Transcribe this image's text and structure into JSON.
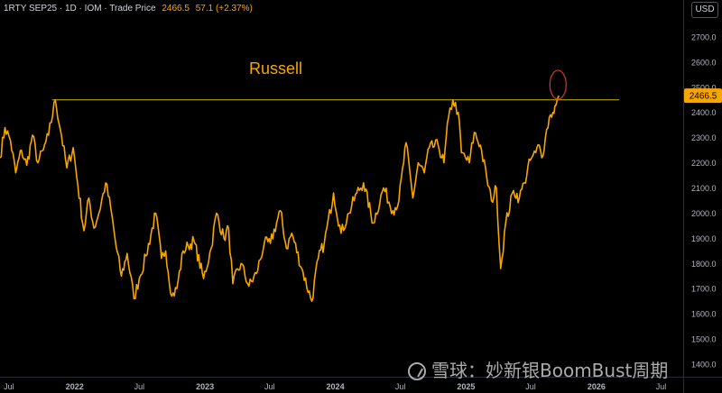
{
  "header": {
    "symbol": "1RTY SEP25 · 1D · IOM · Trade Price",
    "price": "2466.5",
    "change": "57.1 (+2.37%)"
  },
  "currency_button": "USD",
  "watermark": "雪球：妙新银BoomBust周期",
  "colors": {
    "price_line": "#f7a600",
    "resistance": "#c9b600",
    "circle": "#c0392b",
    "background": "#000000"
  },
  "chart_data": {
    "type": "line",
    "title": "Russell",
    "ylim": [
      1350,
      2775
    ],
    "yticks": [
      1400,
      1500,
      1600,
      1700,
      1800,
      1900,
      2000,
      2100,
      2200,
      2300,
      2400,
      2500,
      2600,
      2700
    ],
    "xlim": [
      "2021-06-06",
      "2026-09-01"
    ],
    "xticks": [
      {
        "label": "Jul",
        "date": "2021-07-01"
      },
      {
        "label": "2022",
        "date": "2022-01-01"
      },
      {
        "label": "Jul",
        "date": "2022-07-01"
      },
      {
        "label": "2023",
        "date": "2023-01-01"
      },
      {
        "label": "Jul",
        "date": "2023-07-01"
      },
      {
        "label": "2024",
        "date": "2024-01-01"
      },
      {
        "label": "Jul",
        "date": "2024-07-01"
      },
      {
        "label": "2025",
        "date": "2025-01-01"
      },
      {
        "label": "Jul",
        "date": "2025-07-01"
      },
      {
        "label": "2026",
        "date": "2026-01-01"
      },
      {
        "label": "Jul",
        "date": "2026-07-01"
      }
    ],
    "last_price_label": "2466.5",
    "resistance_level": 2450,
    "series": [
      {
        "points": [
          [
            "2021-06-06",
            2220
          ],
          [
            "2021-06-20",
            2340
          ],
          [
            "2021-07-05",
            2290
          ],
          [
            "2021-07-20",
            2160
          ],
          [
            "2021-08-05",
            2250
          ],
          [
            "2021-08-20",
            2190
          ],
          [
            "2021-09-05",
            2310
          ],
          [
            "2021-09-20",
            2200
          ],
          [
            "2021-10-05",
            2250
          ],
          [
            "2021-10-20",
            2310
          ],
          [
            "2021-11-08",
            2450
          ],
          [
            "2021-11-25",
            2310
          ],
          [
            "2021-12-10",
            2180
          ],
          [
            "2021-12-28",
            2260
          ],
          [
            "2022-01-10",
            2110
          ],
          [
            "2022-01-27",
            1930
          ],
          [
            "2022-02-10",
            2060
          ],
          [
            "2022-02-24",
            1940
          ],
          [
            "2022-03-10",
            2000
          ],
          [
            "2022-03-29",
            2120
          ],
          [
            "2022-04-12",
            2020
          ],
          [
            "2022-04-28",
            1860
          ],
          [
            "2022-05-12",
            1750
          ],
          [
            "2022-05-28",
            1840
          ],
          [
            "2022-06-16",
            1660
          ],
          [
            "2022-07-01",
            1740
          ],
          [
            "2022-07-20",
            1830
          ],
          [
            "2022-08-16",
            2000
          ],
          [
            "2022-09-01",
            1820
          ],
          [
            "2022-09-13",
            1850
          ],
          [
            "2022-09-30",
            1670
          ],
          [
            "2022-10-14",
            1700
          ],
          [
            "2022-11-01",
            1850
          ],
          [
            "2022-11-15",
            1870
          ],
          [
            "2022-12-01",
            1890
          ],
          [
            "2022-12-28",
            1740
          ],
          [
            "2023-01-18",
            1860
          ],
          [
            "2023-02-02",
            2000
          ],
          [
            "2023-02-23",
            1900
          ],
          [
            "2023-03-08",
            1940
          ],
          [
            "2023-03-20",
            1720
          ],
          [
            "2023-04-12",
            1800
          ],
          [
            "2023-05-04",
            1710
          ],
          [
            "2023-05-25",
            1760
          ],
          [
            "2023-06-16",
            1880
          ],
          [
            "2023-07-03",
            1880
          ],
          [
            "2023-07-31",
            2010
          ],
          [
            "2023-08-17",
            1860
          ],
          [
            "2023-09-01",
            1920
          ],
          [
            "2023-09-29",
            1780
          ],
          [
            "2023-10-27",
            1650
          ],
          [
            "2023-11-14",
            1820
          ],
          [
            "2023-12-01",
            1880
          ],
          [
            "2023-12-27",
            2080
          ],
          [
            "2024-01-17",
            1920
          ],
          [
            "2024-02-08",
            2000
          ],
          [
            "2024-03-01",
            2080
          ],
          [
            "2024-03-20",
            2120
          ],
          [
            "2024-04-16",
            1960
          ],
          [
            "2024-05-15",
            2100
          ],
          [
            "2024-06-10",
            2010
          ],
          [
            "2024-06-27",
            2050
          ],
          [
            "2024-07-17",
            2280
          ],
          [
            "2024-08-05",
            2060
          ],
          [
            "2024-08-20",
            2200
          ],
          [
            "2024-09-06",
            2160
          ],
          [
            "2024-09-20",
            2260
          ],
          [
            "2024-10-15",
            2270
          ],
          [
            "2024-10-31",
            2200
          ],
          [
            "2024-11-13",
            2380
          ],
          [
            "2024-11-25",
            2450
          ],
          [
            "2024-12-10",
            2400
          ],
          [
            "2024-12-19",
            2240
          ],
          [
            "2025-01-10",
            2200
          ],
          [
            "2025-01-24",
            2320
          ],
          [
            "2025-02-10",
            2270
          ],
          [
            "2025-02-28",
            2140
          ],
          [
            "2025-03-13",
            2050
          ],
          [
            "2025-03-27",
            2100
          ],
          [
            "2025-04-08",
            1780
          ],
          [
            "2025-04-22",
            1960
          ],
          [
            "2025-05-14",
            2090
          ],
          [
            "2025-05-30",
            2060
          ],
          [
            "2025-06-13",
            2120
          ],
          [
            "2025-06-30",
            2210
          ],
          [
            "2025-07-15",
            2240
          ],
          [
            "2025-07-25",
            2270
          ],
          [
            "2025-08-01",
            2220
          ],
          [
            "2025-08-11",
            2300
          ],
          [
            "2025-08-22",
            2380
          ],
          [
            "2025-09-01",
            2400
          ],
          [
            "2025-09-10",
            2430
          ],
          [
            "2025-09-18",
            2466.5
          ]
        ]
      }
    ]
  }
}
